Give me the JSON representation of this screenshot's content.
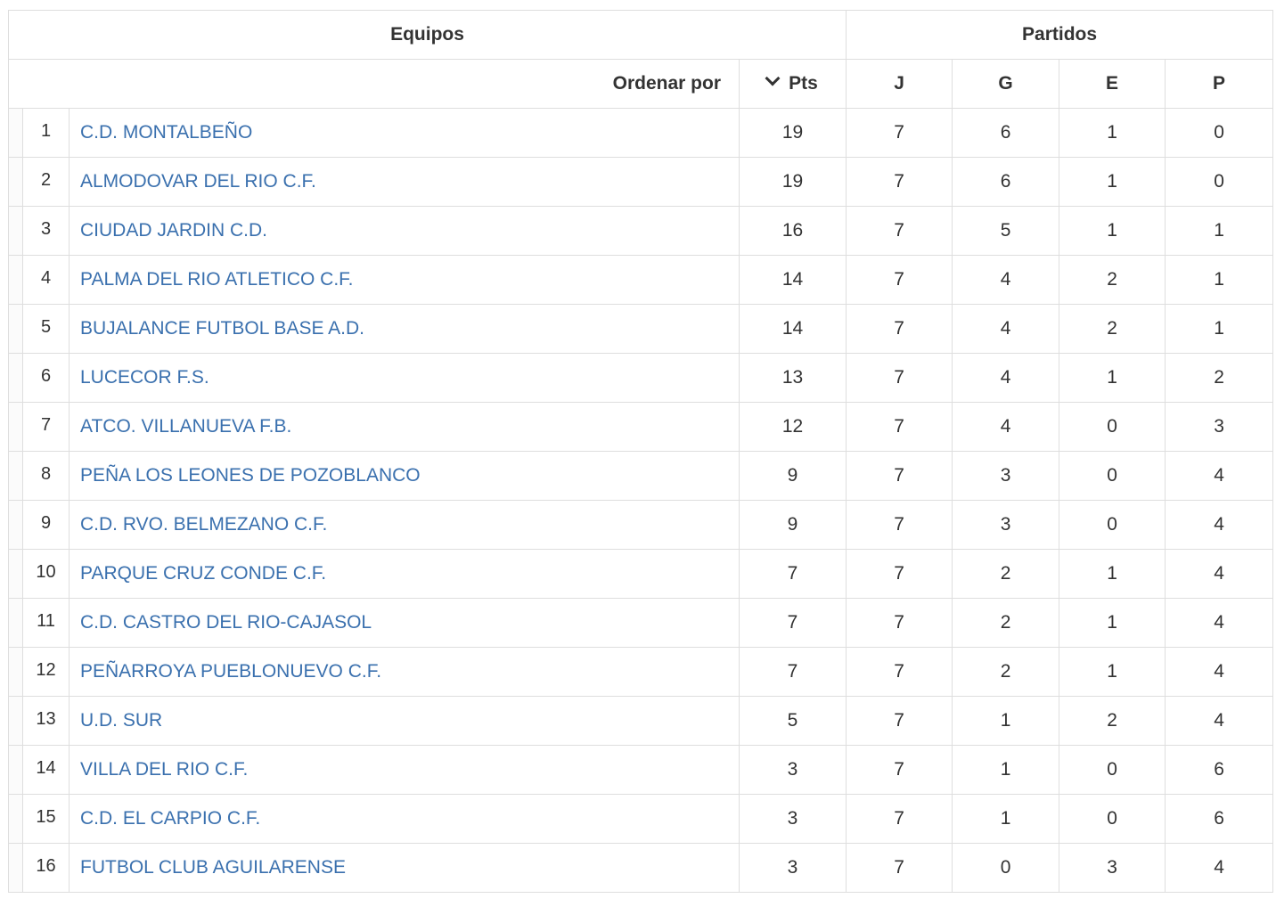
{
  "header": {
    "group_teams": "Equipos",
    "group_matches": "Partidos",
    "sort_label": "Ordenar por",
    "sort_icon": "chevron-down-icon",
    "columns": {
      "pts": "Pts",
      "j": "J",
      "g": "G",
      "e": "E",
      "p": "P"
    }
  },
  "theme": {
    "link_color": "#3a70ae",
    "border_color": "#dedede",
    "text_color": "#333333"
  },
  "rows": [
    {
      "pos": "1",
      "team": "C.D. MONTALBEÑO",
      "pts": "19",
      "j": "7",
      "g": "6",
      "e": "1",
      "p": "0"
    },
    {
      "pos": "2",
      "team": "ALMODOVAR DEL RIO C.F.",
      "pts": "19",
      "j": "7",
      "g": "6",
      "e": "1",
      "p": "0"
    },
    {
      "pos": "3",
      "team": "CIUDAD JARDIN C.D.",
      "pts": "16",
      "j": "7",
      "g": "5",
      "e": "1",
      "p": "1"
    },
    {
      "pos": "4",
      "team": "PALMA DEL RIO ATLETICO C.F.",
      "pts": "14",
      "j": "7",
      "g": "4",
      "e": "2",
      "p": "1"
    },
    {
      "pos": "5",
      "team": "BUJALANCE FUTBOL BASE A.D.",
      "pts": "14",
      "j": "7",
      "g": "4",
      "e": "2",
      "p": "1"
    },
    {
      "pos": "6",
      "team": "LUCECOR F.S.",
      "pts": "13",
      "j": "7",
      "g": "4",
      "e": "1",
      "p": "2"
    },
    {
      "pos": "7",
      "team": "ATCO. VILLANUEVA F.B.",
      "pts": "12",
      "j": "7",
      "g": "4",
      "e": "0",
      "p": "3"
    },
    {
      "pos": "8",
      "team": "PEÑA LOS LEONES DE POZOBLANCO",
      "pts": "9",
      "j": "7",
      "g": "3",
      "e": "0",
      "p": "4"
    },
    {
      "pos": "9",
      "team": "C.D. RVO. BELMEZANO C.F.",
      "pts": "9",
      "j": "7",
      "g": "3",
      "e": "0",
      "p": "4"
    },
    {
      "pos": "10",
      "team": "PARQUE CRUZ CONDE C.F.",
      "pts": "7",
      "j": "7",
      "g": "2",
      "e": "1",
      "p": "4"
    },
    {
      "pos": "11",
      "team": "C.D. CASTRO DEL RIO-CAJASOL",
      "pts": "7",
      "j": "7",
      "g": "2",
      "e": "1",
      "p": "4"
    },
    {
      "pos": "12",
      "team": "PEÑARROYA PUEBLONUEVO C.F.",
      "pts": "7",
      "j": "7",
      "g": "2",
      "e": "1",
      "p": "4"
    },
    {
      "pos": "13",
      "team": "U.D. SUR",
      "pts": "5",
      "j": "7",
      "g": "1",
      "e": "2",
      "p": "4"
    },
    {
      "pos": "14",
      "team": "VILLA DEL RIO C.F.",
      "pts": "3",
      "j": "7",
      "g": "1",
      "e": "0",
      "p": "6"
    },
    {
      "pos": "15",
      "team": "C.D. EL CARPIO C.F.",
      "pts": "3",
      "j": "7",
      "g": "1",
      "e": "0",
      "p": "6"
    },
    {
      "pos": "16",
      "team": "FUTBOL CLUB AGUILARENSE",
      "pts": "3",
      "j": "7",
      "g": "0",
      "e": "3",
      "p": "4"
    }
  ]
}
